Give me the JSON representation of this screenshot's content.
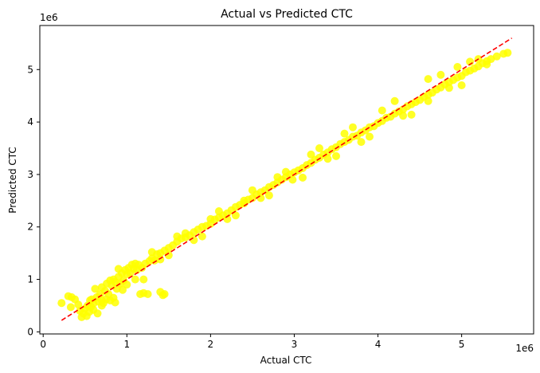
{
  "chart_data": {
    "type": "scatter",
    "title": "Actual vs Predicted CTC",
    "xlabel": "Actual CTC",
    "ylabel": "Predicted CTC",
    "x_offset_label": "1e6",
    "y_offset_label": "1e6",
    "xlim": [
      -0.04,
      5.86
    ],
    "ylim": [
      -0.04,
      5.84
    ],
    "x_ticks": [
      0,
      1,
      2,
      3,
      4,
      5
    ],
    "y_ticks": [
      0,
      1,
      2,
      3,
      4,
      5
    ],
    "x_tick_labels": [
      "0",
      "1",
      "2",
      "3",
      "4",
      "5"
    ],
    "y_tick_labels": [
      "0",
      "1",
      "2",
      "3",
      "4",
      "5"
    ],
    "grid": false,
    "point_color": "#ffff00",
    "line_color": "#ff0000",
    "series": [
      {
        "type": "scatter",
        "points": [
          [
            0.22,
            0.55
          ],
          [
            0.3,
            0.68
          ],
          [
            0.34,
            0.66
          ],
          [
            0.33,
            0.47
          ],
          [
            0.38,
            0.62
          ],
          [
            0.42,
            0.52
          ],
          [
            0.44,
            0.4
          ],
          [
            0.46,
            0.28
          ],
          [
            0.48,
            0.35
          ],
          [
            0.5,
            0.44
          ],
          [
            0.52,
            0.3
          ],
          [
            0.53,
            0.5
          ],
          [
            0.55,
            0.38
          ],
          [
            0.57,
            0.48
          ],
          [
            0.58,
            0.62
          ],
          [
            0.6,
            0.54
          ],
          [
            0.6,
            0.42
          ],
          [
            0.62,
            0.82
          ],
          [
            0.64,
            0.66
          ],
          [
            0.66,
            0.58
          ],
          [
            0.68,
            0.72
          ],
          [
            0.7,
            0.85
          ],
          [
            0.7,
            0.6
          ],
          [
            0.72,
            0.55
          ],
          [
            0.74,
            0.78
          ],
          [
            0.76,
            0.92
          ],
          [
            0.78,
            0.72
          ],
          [
            0.8,
            0.6
          ],
          [
            0.82,
            0.88
          ],
          [
            0.84,
            1.0
          ],
          [
            0.84,
            0.65
          ],
          [
            0.86,
            0.95
          ],
          [
            0.86,
            0.56
          ],
          [
            0.88,
            0.82
          ],
          [
            0.9,
            1.05
          ],
          [
            0.92,
            0.92
          ],
          [
            0.94,
            1.12
          ],
          [
            0.96,
            0.98
          ],
          [
            0.98,
            1.18
          ],
          [
            1.0,
            1.1
          ],
          [
            1.02,
            1.22
          ],
          [
            1.04,
            1.12
          ],
          [
            1.06,
            1.28
          ],
          [
            1.08,
            1.2
          ],
          [
            1.1,
            1.3
          ],
          [
            1.12,
            1.18
          ],
          [
            1.14,
            1.28
          ],
          [
            1.16,
            0.72
          ],
          [
            1.18,
            1.22
          ],
          [
            1.2,
            0.74
          ],
          [
            1.22,
            1.3
          ],
          [
            1.25,
            0.72
          ],
          [
            1.27,
            1.35
          ],
          [
            1.3,
            1.4
          ],
          [
            1.33,
            1.36
          ],
          [
            1.36,
            1.48
          ],
          [
            1.4,
            0.76
          ],
          [
            1.43,
            0.7
          ],
          [
            1.45,
            0.72
          ],
          [
            1.4,
            1.5
          ],
          [
            1.45,
            1.55
          ],
          [
            1.5,
            1.6
          ],
          [
            1.55,
            1.65
          ],
          [
            1.6,
            1.72
          ],
          [
            1.65,
            1.78
          ],
          [
            1.7,
            1.8
          ],
          [
            1.75,
            1.84
          ],
          [
            1.8,
            1.9
          ],
          [
            1.85,
            1.95
          ],
          [
            1.9,
            2.0
          ],
          [
            1.95,
            2.02
          ],
          [
            2.0,
            2.06
          ],
          [
            2.05,
            2.14
          ],
          [
            2.1,
            2.18
          ],
          [
            2.15,
            2.22
          ],
          [
            2.2,
            2.26
          ],
          [
            2.25,
            2.32
          ],
          [
            2.3,
            2.38
          ],
          [
            2.35,
            2.42
          ],
          [
            2.4,
            2.45
          ],
          [
            2.45,
            2.52
          ],
          [
            2.5,
            2.55
          ],
          [
            2.55,
            2.62
          ],
          [
            2.6,
            2.66
          ],
          [
            2.65,
            2.7
          ],
          [
            2.7,
            2.76
          ],
          [
            2.75,
            2.8
          ],
          [
            2.8,
            2.85
          ],
          [
            2.85,
            2.9
          ],
          [
            2.9,
            2.95
          ],
          [
            2.95,
            3.0
          ],
          [
            3.0,
            3.04
          ],
          [
            3.05,
            3.08
          ],
          [
            3.1,
            3.12
          ],
          [
            3.15,
            3.18
          ],
          [
            3.2,
            3.22
          ],
          [
            3.25,
            3.28
          ],
          [
            3.3,
            3.32
          ],
          [
            3.35,
            3.38
          ],
          [
            3.4,
            3.42
          ],
          [
            3.45,
            3.48
          ],
          [
            3.5,
            3.52
          ],
          [
            3.55,
            3.58
          ],
          [
            3.6,
            3.62
          ],
          [
            3.65,
            3.66
          ],
          [
            3.7,
            3.72
          ],
          [
            3.75,
            3.74
          ],
          [
            3.8,
            3.8
          ],
          [
            3.85,
            3.84
          ],
          [
            3.9,
            3.9
          ],
          [
            3.95,
            3.92
          ],
          [
            4.0,
            3.98
          ],
          [
            4.05,
            4.02
          ],
          [
            4.1,
            4.08
          ],
          [
            4.15,
            4.1
          ],
          [
            4.2,
            4.16
          ],
          [
            4.25,
            4.2
          ],
          [
            4.3,
            4.24
          ],
          [
            4.35,
            4.3
          ],
          [
            4.4,
            4.34
          ],
          [
            4.45,
            4.38
          ],
          [
            4.5,
            4.42
          ],
          [
            4.55,
            4.48
          ],
          [
            4.6,
            4.52
          ],
          [
            4.65,
            4.56
          ],
          [
            4.7,
            4.62
          ],
          [
            4.75,
            4.66
          ],
          [
            4.8,
            4.72
          ],
          [
            4.85,
            4.76
          ],
          [
            4.9,
            4.8
          ],
          [
            4.95,
            4.85
          ],
          [
            5.0,
            4.88
          ],
          [
            5.05,
            4.95
          ],
          [
            5.1,
            4.98
          ],
          [
            5.15,
            5.02
          ],
          [
            5.2,
            5.06
          ],
          [
            5.25,
            5.12
          ],
          [
            5.3,
            5.16
          ],
          [
            5.35,
            5.2
          ],
          [
            5.42,
            5.25
          ],
          [
            5.5,
            5.3
          ],
          [
            5.55,
            5.32
          ],
          [
            4.6,
            4.82
          ],
          [
            4.75,
            4.9
          ],
          [
            4.95,
            5.05
          ],
          [
            5.0,
            4.7
          ],
          [
            4.4,
            4.14
          ],
          [
            4.2,
            4.4
          ],
          [
            3.9,
            3.72
          ],
          [
            3.7,
            3.9
          ],
          [
            3.5,
            3.35
          ],
          [
            3.3,
            3.5
          ],
          [
            3.1,
            2.94
          ],
          [
            2.9,
            3.05
          ],
          [
            2.7,
            2.6
          ],
          [
            2.5,
            2.7
          ],
          [
            2.3,
            2.22
          ],
          [
            2.1,
            2.3
          ],
          [
            1.9,
            1.82
          ],
          [
            1.7,
            1.88
          ],
          [
            1.5,
            1.46
          ],
          [
            1.3,
            1.52
          ],
          [
            1.2,
            1.0
          ],
          [
            1.0,
            0.9
          ],
          [
            0.9,
            1.2
          ],
          [
            0.8,
            0.98
          ],
          [
            0.7,
            0.5
          ],
          [
            0.65,
            0.35
          ],
          [
            5.2,
            5.2
          ],
          [
            5.3,
            5.1
          ],
          [
            5.1,
            5.15
          ],
          [
            4.85,
            4.65
          ],
          [
            4.6,
            4.4
          ],
          [
            4.3,
            4.12
          ],
          [
            4.05,
            4.22
          ],
          [
            3.8,
            3.62
          ],
          [
            3.6,
            3.78
          ],
          [
            3.4,
            3.3
          ],
          [
            3.2,
            3.38
          ],
          [
            2.98,
            2.9
          ],
          [
            2.8,
            2.95
          ],
          [
            2.6,
            2.55
          ],
          [
            2.4,
            2.5
          ],
          [
            2.2,
            2.15
          ],
          [
            2.0,
            2.15
          ],
          [
            1.8,
            1.75
          ],
          [
            1.6,
            1.82
          ],
          [
            1.4,
            1.38
          ],
          [
            1.1,
            1.0
          ],
          [
            0.95,
            0.8
          ],
          [
            0.75,
            0.62
          ],
          [
            0.56,
            0.6
          ]
        ]
      },
      {
        "type": "line",
        "style": "dashed",
        "x": [
          0.22,
          5.6
        ],
        "y": [
          0.22,
          5.6
        ]
      }
    ]
  }
}
